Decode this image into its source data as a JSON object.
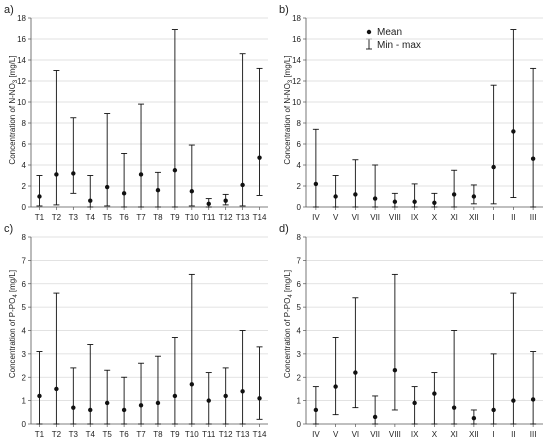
{
  "panels": [
    {
      "letter": "a)",
      "ylabel_main": "Concentration of N-NO",
      "ylabel_sub": "3",
      "ylabel_unit": " [mg/L]"
    },
    {
      "letter": "b)",
      "ylabel_main": "Concentration of N-NO",
      "ylabel_sub": "3",
      "ylabel_unit": " [mg/L]"
    },
    {
      "letter": "c)",
      "ylabel_main": "Concentration of P-PO",
      "ylabel_sub": "4",
      "ylabel_unit": " [mg/L]"
    },
    {
      "letter": "d)",
      "ylabel_main": "Concentration of P-PO",
      "ylabel_sub": "4",
      "ylabel_unit": " [mg/L]"
    }
  ],
  "legend": {
    "mean_label": "Mean",
    "range_label": "Min - max"
  },
  "chart_data": [
    {
      "type": "errorbar",
      "ylim": [
        0,
        18
      ],
      "yticks": [
        0,
        2,
        4,
        6,
        8,
        10,
        12,
        14,
        16,
        18
      ],
      "categories": [
        "T1",
        "T2",
        "T3",
        "T4",
        "T5",
        "T6",
        "T7",
        "T8",
        "T9",
        "T10",
        "T11",
        "T12",
        "T13",
        "T14"
      ],
      "mean": [
        1.0,
        3.1,
        3.2,
        0.6,
        1.9,
        1.3,
        3.1,
        1.6,
        3.5,
        1.5,
        0.3,
        0.6,
        2.1,
        4.7
      ],
      "min": [
        0.1,
        0.2,
        1.3,
        0.0,
        0.1,
        0.0,
        0.0,
        0.0,
        0.0,
        0.1,
        0.0,
        0.2,
        0.1,
        1.1
      ],
      "max": [
        3.0,
        13.0,
        8.5,
        3.0,
        8.9,
        5.1,
        9.8,
        3.3,
        16.9,
        5.9,
        0.8,
        1.2,
        14.6,
        13.2
      ]
    },
    {
      "type": "errorbar",
      "ylim": [
        0,
        18
      ],
      "yticks": [
        0,
        2,
        4,
        6,
        8,
        10,
        12,
        14,
        16,
        18
      ],
      "categories": [
        "IV",
        "V",
        "VI",
        "VII",
        "VIII",
        "IX",
        "X",
        "XI",
        "XII",
        "I",
        "II",
        "III"
      ],
      "mean": [
        2.2,
        1.0,
        1.2,
        0.8,
        0.5,
        0.5,
        0.4,
        1.2,
        1.0,
        3.8,
        7.2,
        4.6
      ],
      "min": [
        0.0,
        0.0,
        0.0,
        0.0,
        0.0,
        0.0,
        0.0,
        0.0,
        0.3,
        0.3,
        0.9,
        0.0
      ],
      "max": [
        7.4,
        3.0,
        4.5,
        4.0,
        1.3,
        2.2,
        1.3,
        3.5,
        2.1,
        11.6,
        16.9,
        13.2
      ]
    },
    {
      "type": "errorbar",
      "ylim": [
        0,
        8
      ],
      "yticks": [
        0,
        1,
        2,
        3,
        4,
        5,
        6,
        7,
        8
      ],
      "categories": [
        "T1",
        "T2",
        "T3",
        "T4",
        "T5",
        "T6",
        "T7",
        "T8",
        "T9",
        "T10",
        "T11",
        "T12",
        "T13",
        "T14"
      ],
      "mean": [
        1.2,
        1.5,
        0.7,
        0.6,
        0.9,
        0.6,
        0.8,
        0.9,
        1.2,
        1.7,
        1.0,
        1.2,
        1.4,
        1.1
      ],
      "min": [
        0.0,
        0.0,
        0.0,
        0.0,
        0.0,
        0.0,
        0.0,
        0.0,
        0.0,
        0.0,
        0.0,
        0.0,
        0.0,
        0.2
      ],
      "max": [
        3.1,
        5.6,
        2.4,
        3.4,
        2.3,
        2.0,
        2.6,
        2.9,
        3.7,
        6.4,
        2.2,
        2.4,
        4.0,
        3.3
      ]
    },
    {
      "type": "errorbar",
      "ylim": [
        0,
        8
      ],
      "yticks": [
        0,
        1,
        2,
        3,
        4,
        5,
        6,
        7,
        8
      ],
      "categories": [
        "IV",
        "V",
        "VI",
        "VII",
        "VIII",
        "IX",
        "X",
        "XI",
        "XII",
        "I",
        "II",
        "III"
      ],
      "mean": [
        0.6,
        1.6,
        2.2,
        0.3,
        2.3,
        0.9,
        1.3,
        0.7,
        0.25,
        0.6,
        1.0,
        1.05
      ],
      "min": [
        0.0,
        0.4,
        0.7,
        0.0,
        0.6,
        0.0,
        0.0,
        0.0,
        0.0,
        0.0,
        0.0,
        0.0
      ],
      "max": [
        1.6,
        3.7,
        5.4,
        1.2,
        6.4,
        1.6,
        2.2,
        4.0,
        0.6,
        3.0,
        5.6,
        3.1
      ]
    }
  ]
}
